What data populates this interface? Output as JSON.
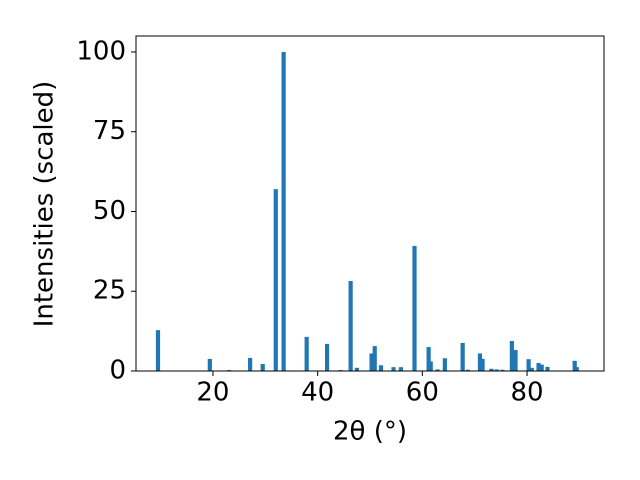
{
  "chart_data": {
    "type": "bar",
    "xlabel": "2θ (°)",
    "ylabel": "Intensities (scaled)",
    "x": [
      9.5,
      19.4,
      23.1,
      27.1,
      29.5,
      32.0,
      33.5,
      37.9,
      41.8,
      44.4,
      46.3,
      47.5,
      50.3,
      50.9,
      52.1,
      54.5,
      55.9,
      58.5,
      61.2,
      61.6,
      62.9,
      64.3,
      67.7,
      68.7,
      71.0,
      71.5,
      73.2,
      74.2,
      75.3,
      77.1,
      77.8,
      80.3,
      80.9,
      82.2,
      82.8,
      83.9,
      89.1,
      89.5
    ],
    "values": [
      12.8,
      3.8,
      0.3,
      4.1,
      2.2,
      57,
      100,
      10.7,
      8.5,
      0.3,
      28.2,
      1,
      5.5,
      7.8,
      1.8,
      1.2,
      1.2,
      39.2,
      7.5,
      3,
      0.5,
      4,
      8.8,
      0.4,
      5.5,
      3.8,
      0.7,
      0.5,
      0.4,
      9.4,
      6.6,
      3.7,
      1,
      2.5,
      2,
      1.3,
      3.2,
      1.2
    ],
    "color": "#1f77b4",
    "xlim": [
      5.3,
      94.7
    ],
    "xticks": [
      20,
      40,
      60,
      80
    ],
    "ylim": [
      0,
      105
    ],
    "yticks": [
      0,
      25,
      50,
      75,
      100
    ]
  }
}
